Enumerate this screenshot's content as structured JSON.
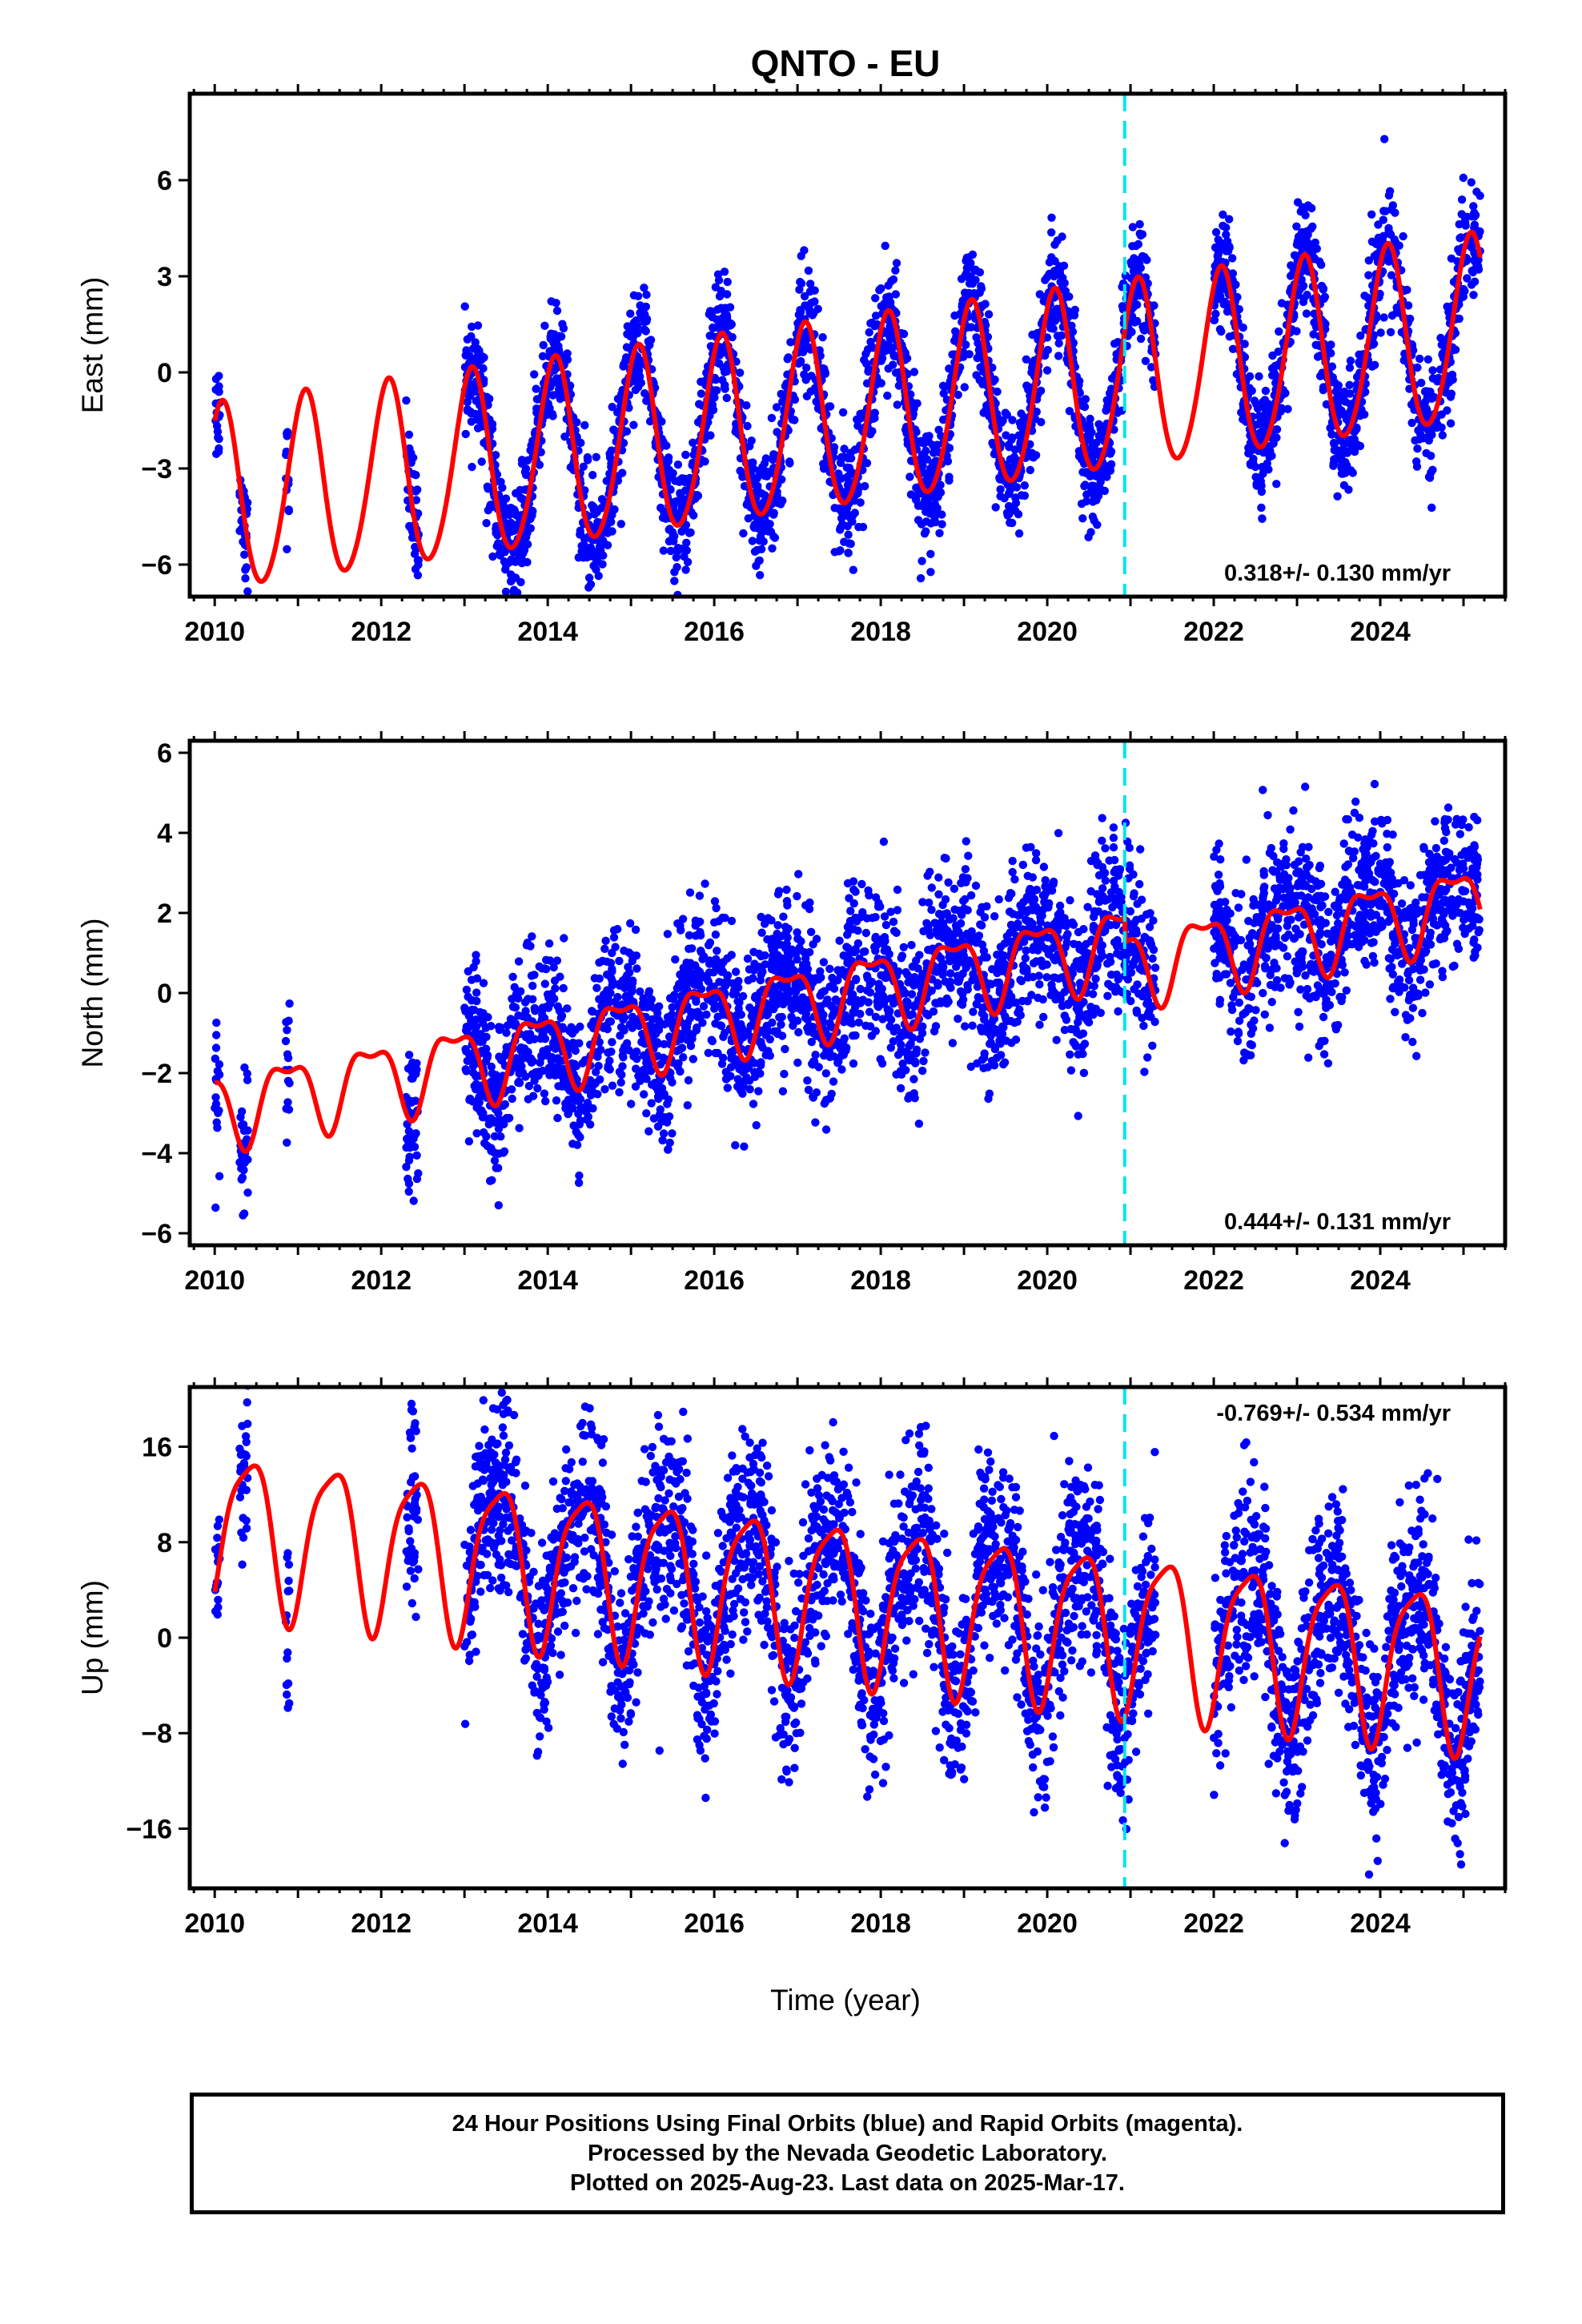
{
  "title": "QNTO - EU",
  "x_label": "Time (year)",
  "footer": {
    "line1": "24 Hour Positions Using Final Orbits (blue) and Rapid Orbits (magenta).",
    "line2": "Processed by the Nevada Geodetic Laboratory.",
    "line3": "Plotted on 2025-Aug-23. Last data on 2025-Mar-17."
  },
  "colors": {
    "points": "#0000ff",
    "model": "#ff0000",
    "equipment_change": "#00e5ee"
  },
  "chart_data": [
    {
      "type": "scatter",
      "name": "east",
      "ylabel": "East (mm)",
      "xlim": [
        2009.7,
        2025.5
      ],
      "ylim": [
        -7,
        8.7
      ],
      "yticks": [
        -6,
        -3,
        0,
        3,
        6
      ],
      "xticks": [
        2010,
        2012,
        2014,
        2016,
        2018,
        2020,
        2022,
        2024
      ],
      "rate_label": "0.318+/- 0.130 mm/yr",
      "rate_position": "bottom-right",
      "equipment_change_year": 2020.93,
      "data_segments": [
        [
          2010.0,
          2010.06
        ],
        [
          2010.3,
          2010.4
        ],
        [
          2010.85,
          2010.9
        ],
        [
          2012.3,
          2012.45
        ],
        [
          2013.0,
          2020.93
        ],
        [
          2020.93,
          2021.3
        ],
        [
          2022.0,
          2025.2
        ]
      ],
      "model": {
        "a0": -1.4,
        "b0": -1.4,
        "slope": 0.35,
        "ref_year": 2017.5,
        "annual_amp": 2.9,
        "annual_phase": 1.05,
        "semi_amp": 0.25
      },
      "noise_sd": 0.9
    },
    {
      "type": "scatter",
      "name": "north",
      "ylabel": "North (mm)",
      "xlim": [
        2009.7,
        2025.5
      ],
      "ylim": [
        -6.3,
        6.3
      ],
      "yticks": [
        -6,
        -4,
        -2,
        0,
        2,
        4,
        6
      ],
      "xticks": [
        2010,
        2012,
        2014,
        2016,
        2018,
        2020,
        2022,
        2024
      ],
      "rate_label": "0.444+/- 0.131 mm/yr",
      "rate_position": "bottom-right",
      "equipment_change_year": 2020.93,
      "data_segments": [
        [
          2010.0,
          2010.06
        ],
        [
          2010.3,
          2010.4
        ],
        [
          2010.85,
          2010.9
        ],
        [
          2012.3,
          2012.45
        ],
        [
          2013.0,
          2020.93
        ],
        [
          2020.93,
          2021.3
        ],
        [
          2022.0,
          2025.2
        ]
      ],
      "model": {
        "a0": 0.0,
        "b0": -0.6,
        "slope": 0.38,
        "ref_year": 2017.5,
        "annual_amp": 0.9,
        "annual_phase": 2.4,
        "semi_amp": 0.35
      },
      "noise_sd": 1.0
    },
    {
      "type": "scatter",
      "name": "up",
      "ylabel": "Up (mm)",
      "xlim": [
        2009.7,
        2025.5
      ],
      "ylim": [
        -21,
        21
      ],
      "yticks": [
        -16,
        -8,
        0,
        8,
        16
      ],
      "xticks": [
        2010,
        2012,
        2014,
        2016,
        2018,
        2020,
        2022,
        2024
      ],
      "rate_label": "-0.769+/- 0.534 mm/yr",
      "rate_position": "top-right",
      "equipment_change_year": 2020.93,
      "data_segments": [
        [
          2010.0,
          2010.06
        ],
        [
          2010.3,
          2010.4
        ],
        [
          2010.85,
          2010.9
        ],
        [
          2012.3,
          2012.45
        ],
        [
          2013.0,
          2020.93
        ],
        [
          2020.93,
          2021.3
        ],
        [
          2022.0,
          2025.2
        ]
      ],
      "model": {
        "a0": 3.5,
        "b0": 3.5,
        "slope": -0.77,
        "ref_year": 2017.5,
        "annual_amp": 6.5,
        "annual_phase": -1.0,
        "semi_amp": 1.5
      },
      "noise_sd": 4.0
    }
  ]
}
